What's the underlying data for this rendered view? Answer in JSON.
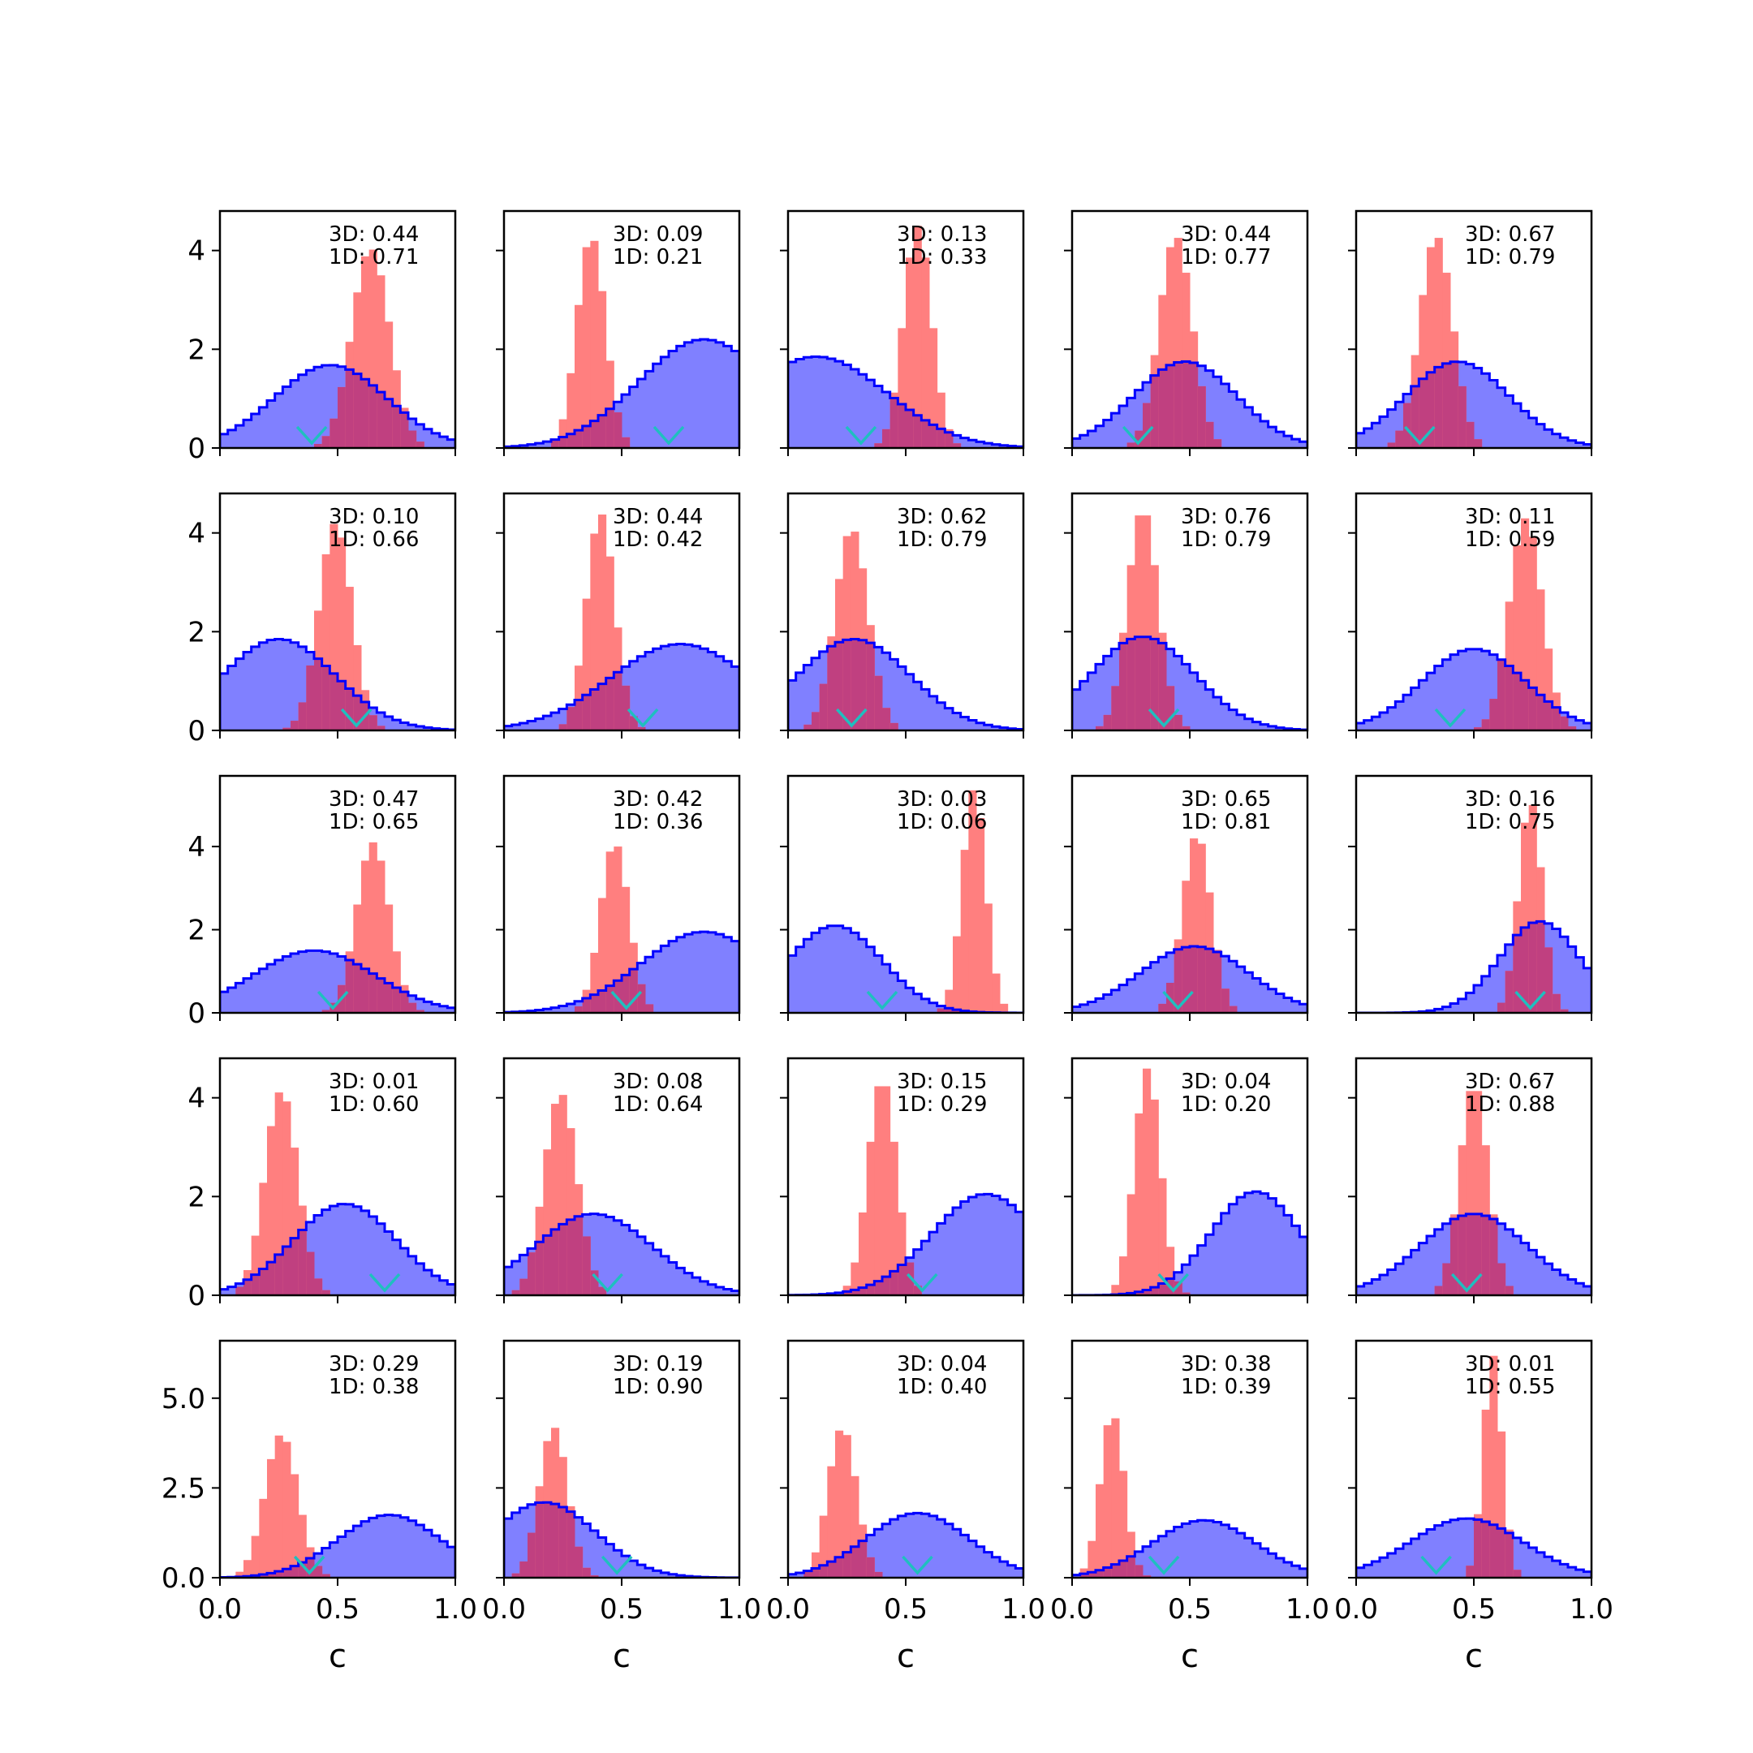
{
  "chart_data": {
    "type": "histogram-grid",
    "rows": 5,
    "cols": 5,
    "xlabel": "c",
    "xlim": [
      0,
      1
    ],
    "x_ticks": [
      "0.0",
      "0.5",
      "1.0"
    ],
    "row_ylim": [
      [
        0,
        4.8
      ],
      [
        0,
        4.8
      ],
      [
        0,
        5.7
      ],
      [
        0,
        4.8
      ],
      [
        0,
        6.6
      ]
    ],
    "row_yticks": [
      [
        "0",
        "2",
        "4"
      ],
      [
        "0",
        "2",
        "4"
      ],
      [
        "0",
        "2",
        "4"
      ],
      [
        "0",
        "2",
        "4"
      ],
      [
        "0.0",
        "2.5",
        "5.0"
      ]
    ],
    "row_ytick_values": [
      [
        0,
        2,
        4
      ],
      [
        0,
        2,
        4
      ],
      [
        0,
        2,
        4
      ],
      [
        0,
        2,
        4
      ],
      [
        0,
        2.5,
        5.0
      ]
    ],
    "colors": {
      "broad": "#0000ff",
      "broad_fill": "#8080ff",
      "narrow": "#ff7f7f",
      "overlap": "#c04080",
      "marker": "#1fbfbf"
    },
    "panels": [
      {
        "label3d": "3D: 0.44",
        "label1d": "1D: 0.71",
        "broad": {
          "mu": 0.47,
          "sd": 0.24,
          "h": 1.68
        },
        "narrow": {
          "mu": 0.64,
          "sd": 0.08,
          "h": 4.05
        },
        "marker": 0.39
      },
      {
        "label3d": "3D: 0.09",
        "label1d": "1D: 0.21",
        "broad": {
          "mu": 0.85,
          "sd": 0.28,
          "h": 2.2
        },
        "narrow": {
          "mu": 0.37,
          "sd": 0.06,
          "h": 4.3
        },
        "marker": 0.7
      },
      {
        "label3d": "3D: 0.13",
        "label1d": "1D: 0.33",
        "broad": {
          "mu": 0.12,
          "sd": 0.3,
          "h": 1.85
        },
        "narrow": {
          "mu": 0.55,
          "sd": 0.06,
          "h": 4.5
        },
        "marker": 0.31
      },
      {
        "label3d": "3D: 0.44",
        "label1d": "1D: 0.77",
        "broad": {
          "mu": 0.48,
          "sd": 0.22,
          "h": 1.75
        },
        "narrow": {
          "mu": 0.44,
          "sd": 0.07,
          "h": 4.3
        },
        "marker": 0.28
      },
      {
        "label3d": "3D: 0.67",
        "label1d": "1D: 0.79",
        "broad": {
          "mu": 0.43,
          "sd": 0.22,
          "h": 1.75
        },
        "narrow": {
          "mu": 0.34,
          "sd": 0.07,
          "h": 4.3
        },
        "marker": 0.27
      },
      {
        "label3d": "3D: 0.10",
        "label1d": "1D: 0.66",
        "broad": {
          "mu": 0.25,
          "sd": 0.24,
          "h": 1.85
        },
        "narrow": {
          "mu": 0.49,
          "sd": 0.07,
          "h": 4.2
        },
        "marker": 0.58
      },
      {
        "label3d": "3D: 0.44",
        "label1d": "1D: 0.42",
        "broad": {
          "mu": 0.75,
          "sd": 0.3,
          "h": 1.75
        },
        "narrow": {
          "mu": 0.41,
          "sd": 0.06,
          "h": 4.4
        },
        "marker": 0.59
      },
      {
        "label3d": "3D: 0.62",
        "label1d": "1D: 0.79",
        "broad": {
          "mu": 0.28,
          "sd": 0.24,
          "h": 1.85
        },
        "narrow": {
          "mu": 0.27,
          "sd": 0.07,
          "h": 4.1
        },
        "marker": 0.27
      },
      {
        "label3d": "3D: 0.76",
        "label1d": "1D: 0.79",
        "broad": {
          "mu": 0.3,
          "sd": 0.22,
          "h": 1.9
        },
        "narrow": {
          "mu": 0.3,
          "sd": 0.065,
          "h": 4.5
        },
        "marker": 0.39
      },
      {
        "label3d": "3D: 0.11",
        "label1d": "1D: 0.59",
        "broad": {
          "mu": 0.5,
          "sd": 0.22,
          "h": 1.65
        },
        "narrow": {
          "mu": 0.72,
          "sd": 0.07,
          "h": 4.3
        },
        "marker": 0.4
      },
      {
        "label3d": "3D: 0.47",
        "label1d": "1D: 0.65",
        "broad": {
          "mu": 0.4,
          "sd": 0.26,
          "h": 1.5
        },
        "narrow": {
          "mu": 0.65,
          "sd": 0.07,
          "h": 4.1
        },
        "marker": 0.48
      },
      {
        "label3d": "3D: 0.42",
        "label1d": "1D: 0.36",
        "broad": {
          "mu": 0.85,
          "sd": 0.27,
          "h": 1.95
        },
        "narrow": {
          "mu": 0.47,
          "sd": 0.06,
          "h": 4.1
        },
        "marker": 0.52
      },
      {
        "label3d": "3D: 0.03",
        "label1d": "1D: 0.06",
        "broad": {
          "mu": 0.2,
          "sd": 0.2,
          "h": 2.1
        },
        "narrow": {
          "mu": 0.79,
          "sd": 0.05,
          "h": 5.4
        },
        "marker": 0.4
      },
      {
        "label3d": "3D: 0.65",
        "label1d": "1D: 0.81",
        "broad": {
          "mu": 0.52,
          "sd": 0.23,
          "h": 1.6
        },
        "narrow": {
          "mu": 0.53,
          "sd": 0.06,
          "h": 4.3
        },
        "marker": 0.45
      },
      {
        "label3d": "3D: 0.16",
        "label1d": "1D: 0.75",
        "broad": {
          "mu": 0.78,
          "sd": 0.17,
          "h": 2.2
        },
        "narrow": {
          "mu": 0.74,
          "sd": 0.05,
          "h": 5.1
        },
        "marker": 0.74
      },
      {
        "label3d": "3D: 0.01",
        "label1d": "1D: 0.60",
        "broad": {
          "mu": 0.53,
          "sd": 0.22,
          "h": 1.85
        },
        "narrow": {
          "mu": 0.26,
          "sd": 0.07,
          "h": 4.15
        },
        "marker": 0.7
      },
      {
        "label3d": "3D: 0.08",
        "label1d": "1D: 0.64",
        "broad": {
          "mu": 0.38,
          "sd": 0.25,
          "h": 1.65
        },
        "narrow": {
          "mu": 0.24,
          "sd": 0.07,
          "h": 4.1
        },
        "marker": 0.44
      },
      {
        "label3d": "3D: 0.15",
        "label1d": "1D: 0.29",
        "broad": {
          "mu": 0.84,
          "sd": 0.23,
          "h": 2.05
        },
        "narrow": {
          "mu": 0.4,
          "sd": 0.06,
          "h": 4.4
        },
        "marker": 0.57
      },
      {
        "label3d": "3D: 0.04",
        "label1d": "1D: 0.20",
        "broad": {
          "mu": 0.78,
          "sd": 0.19,
          "h": 2.1
        },
        "narrow": {
          "mu": 0.32,
          "sd": 0.055,
          "h": 4.6
        },
        "marker": 0.43
      },
      {
        "label3d": "3D: 0.67",
        "label1d": "1D: 0.88",
        "broad": {
          "mu": 0.5,
          "sd": 0.23,
          "h": 1.65
        },
        "narrow": {
          "mu": 0.5,
          "sd": 0.06,
          "h": 4.3
        },
        "marker": 0.47
      },
      {
        "label3d": "3D: 0.29",
        "label1d": "1D: 0.38",
        "broad": {
          "mu": 0.72,
          "sd": 0.22,
          "h": 1.75
        },
        "narrow": {
          "mu": 0.26,
          "sd": 0.07,
          "h": 4.0
        },
        "marker": 0.38
      },
      {
        "label3d": "3D: 0.19",
        "label1d": "1D: 0.90",
        "broad": {
          "mu": 0.17,
          "sd": 0.22,
          "h": 2.1
        },
        "narrow": {
          "mu": 0.21,
          "sd": 0.06,
          "h": 4.2
        },
        "marker": 0.48
      },
      {
        "label3d": "3D: 0.04",
        "label1d": "1D: 0.40",
        "broad": {
          "mu": 0.55,
          "sd": 0.22,
          "h": 1.8
        },
        "narrow": {
          "mu": 0.23,
          "sd": 0.06,
          "h": 4.2
        },
        "marker": 0.55
      },
      {
        "label3d": "3D: 0.38",
        "label1d": "1D: 0.39",
        "broad": {
          "mu": 0.56,
          "sd": 0.22,
          "h": 1.6
        },
        "narrow": {
          "mu": 0.17,
          "sd": 0.05,
          "h": 4.6
        },
        "marker": 0.39
      },
      {
        "label3d": "3D: 0.01",
        "label1d": "1D: 0.55",
        "broad": {
          "mu": 0.47,
          "sd": 0.24,
          "h": 1.65
        },
        "narrow": {
          "mu": 0.58,
          "sd": 0.04,
          "h": 6.2
        },
        "marker": 0.34
      }
    ]
  }
}
